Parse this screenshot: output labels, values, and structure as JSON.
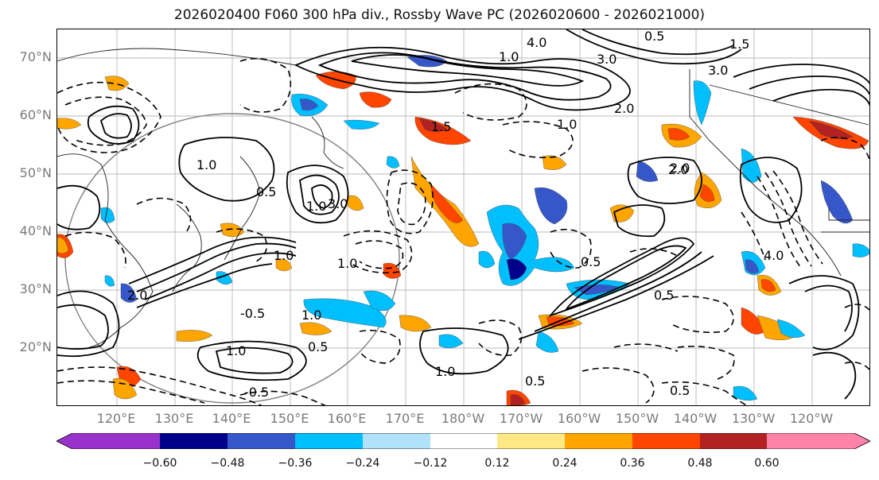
{
  "title": "2026020400 F060 300 hPa div., Rossby Wave PC (2026020600 - 2026021000)",
  "lat_labels": [
    "70°N",
    "60°N",
    "50°N",
    "40°N",
    "30°N",
    "20°N"
  ],
  "lon_labels": [
    "120°E",
    "130°E",
    "140°E",
    "150°E",
    "160°E",
    "170°E",
    "180°W",
    "170°W",
    "160°W",
    "150°W",
    "140°W",
    "130°W",
    "120°W"
  ],
  "colorbar": {
    "colors": [
      "#9932CC",
      "#00008B",
      "#3657C9",
      "#00BFFF",
      "#B2E2FA",
      "#FFFFFF",
      "#FFE987",
      "#FFA500",
      "#FF4500",
      "#B22222",
      "#FF82AB"
    ],
    "tick_labels": [
      "−0.60",
      "−0.48",
      "−0.36",
      "−0.24",
      "−0.12",
      "0.12",
      "0.24",
      "0.36",
      "0.48",
      "0.60"
    ]
  },
  "contour_labels": [
    {
      "text": "4.0"
    },
    {
      "text": "1.0"
    },
    {
      "text": "3.0"
    },
    {
      "text": "1.5"
    },
    {
      "text": "3.0"
    },
    {
      "text": "0.5"
    },
    {
      "text": "2.0"
    },
    {
      "text": "1.0"
    },
    {
      "text": "2.0"
    },
    {
      "text": "1.0"
    },
    {
      "text": "1.0"
    },
    {
      "text": "0.5"
    },
    {
      "text": "1.0"
    },
    {
      "text": "1.0"
    },
    {
      "text": "1.5"
    },
    {
      "text": "-0.5"
    },
    {
      "text": "2.0"
    },
    {
      "text": "3.0"
    },
    {
      "text": "1.0"
    },
    {
      "text": "0.5"
    },
    {
      "text": "0.5"
    },
    {
      "text": "2.0"
    },
    {
      "text": "4.0"
    },
    {
      "text": "0.5"
    },
    {
      "text": "1.0"
    },
    {
      "text": "-0.5"
    },
    {
      "text": "0.5"
    },
    {
      "text": "1.0"
    },
    {
      "text": "0.5"
    }
  ]
}
